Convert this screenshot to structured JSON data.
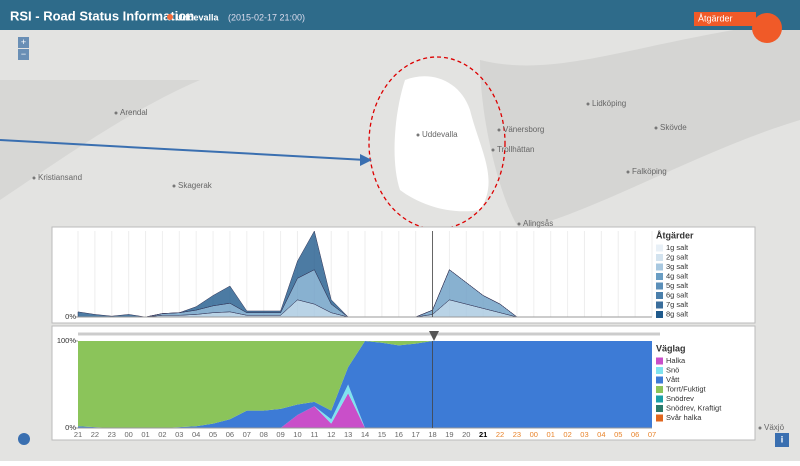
{
  "header": {
    "title": "RSI - Road Status Information",
    "location": "Uddevalla",
    "timestamp": "(2015-02-17 21:00)",
    "action_button": "Åtgärder"
  },
  "map": {
    "zoom_in": "+",
    "zoom_out": "−",
    "info": "i",
    "labels": [
      "Arendal",
      "Kristiansand",
      "Skagerak",
      "Uddevalla",
      "Vänersborg",
      "Trollhättan",
      "Lidköping",
      "Skövde",
      "Falköping",
      "Alingsås",
      "Växjö"
    ]
  },
  "chart_data": [
    {
      "type": "area",
      "legend_title": "Åtgärder",
      "ylim": [
        0,
        100
      ],
      "yticks": [
        {
          "value": 0,
          "label": "0%"
        }
      ],
      "series": [
        {
          "name": "1g salt",
          "color": "#e8f0f7"
        },
        {
          "name": "2g salt",
          "color": "#d3e3ef"
        },
        {
          "name": "3g salt",
          "color": "#a8c8e0",
          "values": [
            0,
            0,
            0,
            0,
            0,
            2,
            2,
            3,
            5,
            6,
            2,
            2,
            2,
            20,
            15,
            5,
            0,
            0,
            0,
            0,
            0,
            3,
            20,
            15,
            10,
            5,
            0,
            0,
            0,
            0,
            0,
            0,
            0,
            0,
            0
          ]
        },
        {
          "name": "4g salt",
          "color": "#6a9ec4",
          "values": [
            0,
            0,
            0,
            0,
            0,
            2,
            3,
            5,
            8,
            10,
            3,
            3,
            3,
            25,
            40,
            10,
            0,
            0,
            0,
            0,
            0,
            5,
            35,
            25,
            15,
            10,
            0,
            0,
            0,
            0,
            0,
            0,
            0,
            0,
            0
          ]
        },
        {
          "name": "5g salt",
          "color": "#5b8fb9"
        },
        {
          "name": "6g salt",
          "color": "#4a7fab"
        },
        {
          "name": "7g salt",
          "color": "#3a6e9c"
        },
        {
          "name": "8g salt",
          "color": "#1f5a8c",
          "values": [
            6,
            3,
            1,
            3,
            0,
            0,
            0,
            4,
            12,
            20,
            2,
            2,
            2,
            20,
            45,
            5,
            0,
            0,
            0,
            0,
            0,
            0,
            0,
            0,
            0,
            0,
            0,
            0,
            0,
            0,
            0,
            0,
            0,
            0,
            0
          ]
        }
      ]
    },
    {
      "type": "area",
      "legend_title": "Väglag",
      "ylim": [
        0,
        100
      ],
      "yticks": [
        {
          "value": 100,
          "label": "100%"
        },
        {
          "value": 0,
          "label": "0%"
        }
      ],
      "x_labels": {
        "past": [
          "21",
          "22",
          "23",
          "00",
          "01",
          "02",
          "03",
          "04",
          "05",
          "06",
          "07",
          "08",
          "09",
          "10",
          "11",
          "12",
          "13",
          "14",
          "15",
          "16",
          "17",
          "18",
          "19",
          "20"
        ],
        "now": "21",
        "forecast": [
          "22",
          "23",
          "00",
          "01",
          "02",
          "03",
          "04",
          "05",
          "06",
          "07"
        ]
      },
      "series": [
        {
          "name": "Halka",
          "color": "#c94fc9",
          "values": [
            0,
            0,
            0,
            0,
            0,
            0,
            0,
            0,
            0,
            0,
            0,
            0,
            0,
            15,
            25,
            5,
            40,
            0,
            0,
            0,
            0,
            0,
            0,
            0,
            0,
            0,
            0,
            0,
            0,
            0,
            0,
            0,
            0,
            0,
            0
          ]
        },
        {
          "name": "Snö",
          "color": "#7fe3ef",
          "values": [
            0,
            0,
            0,
            0,
            0,
            0,
            0,
            0,
            0,
            0,
            0,
            0,
            0,
            0,
            0,
            5,
            10,
            0,
            0,
            0,
            0,
            0,
            0,
            0,
            0,
            0,
            0,
            0,
            0,
            0,
            0,
            0,
            0,
            0,
            0
          ]
        },
        {
          "name": "Vått",
          "color": "#3d7bd6",
          "values": [
            2,
            1,
            0,
            0,
            0,
            0,
            1,
            2,
            5,
            10,
            20,
            20,
            22,
            12,
            5,
            10,
            20,
            100,
            98,
            95,
            97,
            100,
            100,
            100,
            100,
            100,
            100,
            100,
            100,
            100,
            100,
            100,
            100,
            100,
            100
          ]
        },
        {
          "name": "Torrt/Fuktigt",
          "color": "#8bc45a",
          "values": [
            98,
            99,
            100,
            100,
            100,
            100,
            99,
            98,
            95,
            90,
            80,
            80,
            78,
            73,
            70,
            80,
            30,
            0,
            2,
            5,
            3,
            0,
            0,
            0,
            0,
            0,
            0,
            0,
            0,
            0,
            0,
            0,
            0,
            0,
            0
          ]
        },
        {
          "name": "Snödrev",
          "color": "#1aa0a8"
        },
        {
          "name": "Snödrev, Kraftigt",
          "color": "#2a7a6a"
        },
        {
          "name": "Svår halka",
          "color": "#e0661e"
        }
      ]
    }
  ]
}
